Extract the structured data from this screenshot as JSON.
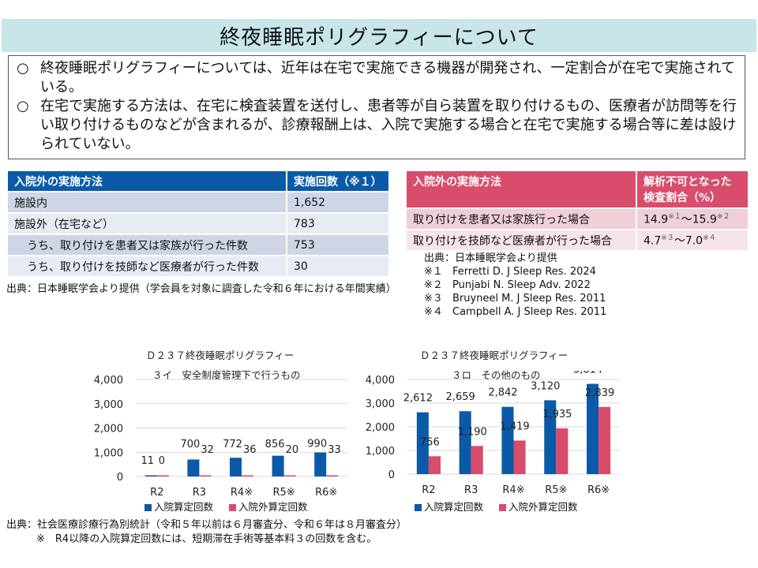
{
  "header": {
    "title": "終夜睡眠ポリグラフィーについて"
  },
  "summary": {
    "bullets": [
      {
        "mark": "○",
        "text": "終夜睡眠ポリグラフィーについては、近年は在宅で実施できる機器が開発され、一定割合が在宅で実施されている。"
      },
      {
        "mark": "○",
        "text": "在宅で実施する方法は、在宅に検査装置を送付し、患者等が自ら装置を取り付けるもの、医療者が訪問等を行い取り付けるものなどが含まれるが、診療報酬上は、入院で実施する場合と在宅で実施する場合等に差は設けられていない。"
      }
    ]
  },
  "table_left": {
    "headers": [
      "入院外の実施方法",
      "実施回数（※１）"
    ],
    "rows": [
      {
        "label": "施設内",
        "value": "1,652"
      },
      {
        "label": "施設外（在宅など）",
        "value": "783"
      },
      {
        "label": "うち、取り付けを患者又は家族が行った件数",
        "value": "753"
      },
      {
        "label": "うち、取り付けを技師など医療者が行った件数",
        "value": "30"
      }
    ],
    "source": "出典：日本睡眠学会より提供（学会員を対象に調査した令和６年における年間実績）"
  },
  "table_right": {
    "headers": [
      "入院外の実施方法",
      "解析不可となった検査割合（%）"
    ],
    "rows": [
      {
        "label": "取り付けを患者又は家族行った場合",
        "low": "14.9",
        "low_ref": "※１",
        "sep": "～",
        "high": "15.9",
        "high_ref": "※２"
      },
      {
        "label": "取り付けを技師など医療者が行った場合",
        "low": "4.7",
        "low_ref": "※３",
        "sep": "～",
        "high": "7.0",
        "high_ref": "※４"
      }
    ],
    "source": "出典：日本睡眠学会より提供",
    "references": [
      {
        "mark": "※１",
        "text": "Ferretti D. J Sleep Res. 2024"
      },
      {
        "mark": "※２",
        "text": "Punjabi N. Sleep Adv. 2022"
      },
      {
        "mark": "※３",
        "text": "Bruyneel M. J Sleep Res. 2011"
      },
      {
        "mark": "※４",
        "text": "Campbell A. J Sleep Res. 2011"
      }
    ]
  },
  "chart_data": [
    {
      "type": "bar",
      "title": "Ｄ２３７終夜睡眠ポリグラフィー",
      "subtitle": "３イ　安全制度管理下で行うもの",
      "categories": [
        "R2",
        "R3",
        "R4※",
        "R5※",
        "R6※"
      ],
      "series": [
        {
          "name": "入院算定回数",
          "color": "#0a5aa8",
          "values": [
            11,
            700,
            772,
            856,
            990
          ]
        },
        {
          "name": "入院外算定回数",
          "color": "#d84d6c",
          "values": [
            0,
            32,
            36,
            20,
            33
          ]
        }
      ],
      "ylim": [
        0,
        4000
      ],
      "yticks": [
        0,
        1000,
        2000,
        3000,
        4000
      ],
      "ytick_labels": [
        "0",
        "1,000",
        "2,000",
        "3,000",
        "4,000"
      ],
      "grid": true,
      "legend": "bottom"
    },
    {
      "type": "bar",
      "title": "Ｄ２３７終夜睡眠ポリグラフィー",
      "subtitle": "３ロ　その他のもの",
      "categories": [
        "R2",
        "R3",
        "R4※",
        "R5※",
        "R6※"
      ],
      "series": [
        {
          "name": "入院算定回数",
          "color": "#0a5aa8",
          "values": [
            2612,
            2659,
            2842,
            3120,
            3814
          ]
        },
        {
          "name": "入院外算定回数",
          "color": "#d84d6c",
          "values": [
            756,
            1190,
            1419,
            1935,
            2839
          ]
        }
      ],
      "ylim": [
        0,
        4000
      ],
      "yticks": [
        0,
        1000,
        2000,
        3000,
        4000
      ],
      "ytick_labels": [
        "0",
        "1,000",
        "2,000",
        "3,000",
        "4,000"
      ],
      "grid": true,
      "legend": "bottom"
    }
  ],
  "footer": {
    "source": "出典：社会医療診療行為別統計（令和５年以前は６月審査分、令和６年は８月審査分）",
    "note": "※　R4以降の入院算定回数には、短期滞在手術等基本料３の回数を含む。"
  }
}
